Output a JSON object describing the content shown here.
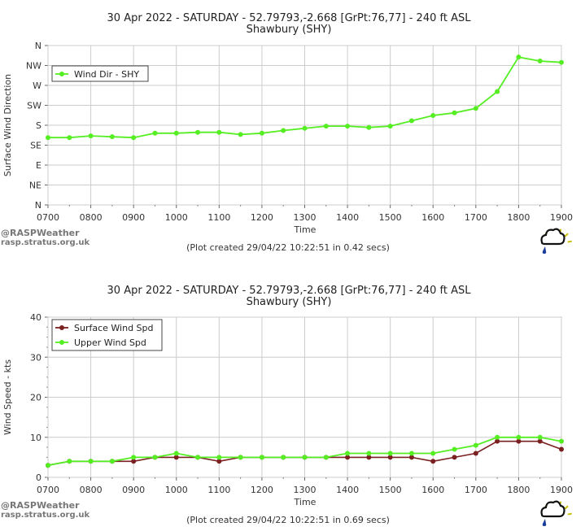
{
  "chart_data": [
    {
      "type": "line",
      "title": "30 Apr 2022 - SATURDAY - 52.79793,-2.668 [GrPt:76,77]  - 240 ft ASL",
      "subtitle": "Shawbury (SHY)",
      "xlabel": "Time",
      "ylabel": "Surface Wind Direction",
      "x_ticks": [
        "0700",
        "0800",
        "0900",
        "1000",
        "1100",
        "1200",
        "1300",
        "1400",
        "1500",
        "1600",
        "1700",
        "1800",
        "1900"
      ],
      "xlim": [
        7,
        19
      ],
      "ylim": [
        0,
        360
      ],
      "y_ticks": [
        {
          "label": "N",
          "value": 0
        },
        {
          "label": "NE",
          "value": 45
        },
        {
          "label": "E",
          "value": 90
        },
        {
          "label": "SE",
          "value": 135
        },
        {
          "label": "S",
          "value": 180
        },
        {
          "label": "SW",
          "value": 225
        },
        {
          "label": "W",
          "value": 270
        },
        {
          "label": "NW",
          "value": 315
        },
        {
          "label": "N",
          "value": 360
        }
      ],
      "legend_position": "top-left",
      "series": [
        {
          "name": "Wind Dir - SHY",
          "color": "#55ee22",
          "x": [
            7.0,
            7.5,
            8.0,
            8.5,
            9.0,
            9.5,
            10.0,
            10.5,
            11.0,
            11.5,
            12.0,
            12.5,
            13.0,
            13.5,
            14.0,
            14.5,
            15.0,
            15.5,
            16.0,
            16.5,
            17.0,
            17.5,
            18.0,
            18.5,
            19.0
          ],
          "values": [
            152,
            152,
            156,
            154,
            152,
            162,
            162,
            164,
            164,
            159,
            162,
            168,
            173,
            178,
            178,
            175,
            178,
            190,
            202,
            208,
            218,
            256,
            334,
            325,
            322
          ]
        }
      ],
      "footer": "(Plot created 29/04/22 10:22:51 in 0.42 secs)"
    },
    {
      "type": "line",
      "title": "30 Apr 2022 - SATURDAY - 52.79793,-2.668 [GrPt:76,77]  - 240 ft ASL",
      "subtitle": "Shawbury (SHY)",
      "xlabel": "Time",
      "ylabel": "Wind Speed - kts",
      "x_ticks": [
        "0700",
        "0800",
        "0900",
        "1000",
        "1100",
        "1200",
        "1300",
        "1400",
        "1500",
        "1600",
        "1700",
        "1800",
        "1900"
      ],
      "xlim": [
        7,
        19
      ],
      "ylim": [
        0,
        40
      ],
      "y_ticks": [
        {
          "label": "0",
          "value": 0
        },
        {
          "label": "10",
          "value": 10
        },
        {
          "label": "20",
          "value": 20
        },
        {
          "label": "30",
          "value": 30
        },
        {
          "label": "40",
          "value": 40
        }
      ],
      "legend_position": "top-left",
      "series": [
        {
          "name": "Surface Wind Spd",
          "color": "#7a2020",
          "x": [
            7.0,
            7.5,
            8.0,
            8.5,
            9.0,
            9.5,
            10.0,
            10.5,
            11.0,
            11.5,
            12.0,
            12.5,
            13.0,
            13.5,
            14.0,
            14.5,
            15.0,
            15.5,
            16.0,
            16.5,
            17.0,
            17.5,
            18.0,
            18.5,
            19.0
          ],
          "values": [
            3,
            4,
            4,
            4,
            4,
            5,
            5,
            5,
            4,
            5,
            5,
            5,
            5,
            5,
            5,
            5,
            5,
            5,
            4,
            5,
            6,
            9,
            9,
            9,
            7
          ]
        },
        {
          "name": "Upper Wind Spd",
          "color": "#55ee22",
          "x": [
            7.0,
            7.5,
            8.0,
            8.5,
            9.0,
            9.5,
            10.0,
            10.5,
            11.0,
            11.5,
            12.0,
            12.5,
            13.0,
            13.5,
            14.0,
            14.5,
            15.0,
            15.5,
            16.0,
            16.5,
            17.0,
            17.5,
            18.0,
            18.5,
            19.0
          ],
          "values": [
            3,
            4,
            4,
            4,
            5,
            5,
            6,
            5,
            5,
            5,
            5,
            5,
            5,
            5,
            6,
            6,
            6,
            6,
            6,
            7,
            8,
            10,
            10,
            10,
            9
          ]
        }
      ],
      "footer": "(Plot created 29/04/22 10:22:51 in 0.69 secs)"
    }
  ],
  "branding": {
    "logo_text": "@RASPWeather",
    "site_text": "rasp.stratus.org.uk",
    "icon_name": "weather-cloud-icon"
  }
}
